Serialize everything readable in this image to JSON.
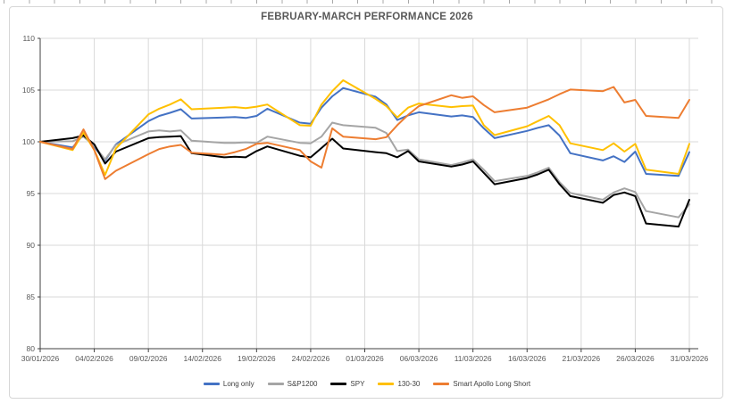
{
  "chart_data": {
    "type": "line",
    "title": "FEBRUARY-MARCH PERFORMANCE 2026",
    "xlabel": "",
    "ylabel": "",
    "ylim": [
      80,
      110
    ],
    "y_ticks": [
      80,
      85,
      90,
      95,
      100,
      105,
      110
    ],
    "grid": true,
    "legend_position": "bottom",
    "x_tick_labels": [
      "30/01/2026",
      "04/02/2026",
      "09/02/2026",
      "14/02/2026",
      "19/02/2026",
      "24/02/2026",
      "01/03/2026",
      "06/03/2026",
      "11/03/2026",
      "16/03/2026",
      "21/03/2026",
      "26/03/2026",
      "31/03/2026"
    ],
    "x": [
      "30/01/2026",
      "02/02/2026",
      "03/02/2026",
      "04/02/2026",
      "05/02/2026",
      "06/02/2026",
      "09/02/2026",
      "10/02/2026",
      "11/02/2026",
      "12/02/2026",
      "13/02/2026",
      "16/02/2026",
      "17/02/2026",
      "18/02/2026",
      "19/02/2026",
      "20/02/2026",
      "23/02/2026",
      "24/02/2026",
      "25/02/2026",
      "26/02/2026",
      "27/02/2026",
      "02/03/2026",
      "03/03/2026",
      "04/03/2026",
      "05/03/2026",
      "06/03/2026",
      "09/03/2026",
      "10/03/2026",
      "11/03/2026",
      "12/03/2026",
      "13/03/2026",
      "16/03/2026",
      "17/03/2026",
      "18/03/2026",
      "19/03/2026",
      "20/03/2026",
      "23/03/2026",
      "24/03/2026",
      "25/03/2026",
      "26/03/2026",
      "27/03/2026",
      "30/03/2026",
      "31/03/2026"
    ],
    "series": [
      {
        "name": "Long only",
        "color": "#4472C4",
        "values": [
          100,
          99.45,
          100.7,
          99.5,
          98.2,
          99.75,
          102.0,
          102.5,
          102.8,
          103.15,
          102.25,
          102.35,
          102.4,
          102.3,
          102.5,
          103.2,
          101.85,
          101.75,
          103.3,
          104.4,
          105.2,
          104.35,
          103.6,
          102.1,
          102.55,
          102.85,
          102.45,
          102.55,
          102.4,
          101.3,
          100.35,
          101.05,
          101.35,
          101.6,
          100.6,
          98.9,
          98.2,
          98.6,
          98.05,
          99.05,
          96.9,
          96.7,
          99.0
        ]
      },
      {
        "name": "S&P1200",
        "color": "#A5A5A5",
        "values": [
          100,
          100.05,
          100.5,
          99.6,
          98.3,
          99.7,
          101.0,
          101.1,
          101.0,
          101.1,
          100.1,
          99.9,
          99.9,
          99.95,
          99.9,
          100.5,
          99.9,
          99.85,
          100.5,
          101.85,
          101.6,
          101.35,
          100.85,
          99.1,
          99.25,
          98.3,
          97.75,
          98.0,
          98.3,
          97.3,
          96.2,
          96.7,
          97.05,
          97.5,
          96.1,
          95.05,
          94.4,
          95.1,
          95.5,
          95.15,
          93.3,
          92.7,
          93.95
        ]
      },
      {
        "name": "SPY",
        "color": "#000000",
        "values": [
          100,
          100.35,
          100.6,
          99.75,
          97.9,
          99.05,
          100.35,
          100.45,
          100.5,
          100.55,
          98.9,
          98.5,
          98.55,
          98.5,
          99.1,
          99.55,
          98.65,
          98.5,
          99.4,
          100.3,
          99.35,
          99.0,
          98.9,
          98.5,
          99.1,
          98.1,
          97.6,
          97.8,
          98.1,
          97.0,
          95.9,
          96.5,
          96.85,
          97.3,
          95.9,
          94.75,
          94.1,
          94.85,
          95.1,
          94.75,
          92.1,
          91.8,
          94.4
        ]
      },
      {
        "name": "130-30",
        "color": "#FFC000",
        "values": [
          100,
          99.2,
          100.9,
          99.2,
          96.8,
          99.35,
          102.65,
          103.2,
          103.6,
          104.1,
          103.15,
          103.3,
          103.35,
          103.25,
          103.4,
          103.6,
          101.6,
          101.55,
          103.6,
          104.9,
          105.95,
          104.15,
          103.45,
          102.35,
          103.3,
          103.7,
          103.35,
          103.45,
          103.5,
          101.6,
          100.65,
          101.5,
          102.0,
          102.5,
          101.6,
          99.85,
          99.2,
          99.85,
          99.05,
          99.8,
          97.3,
          96.9,
          99.8
        ]
      },
      {
        "name": "Smart Apollo Long Short",
        "color": "#ED7D31",
        "values": [
          100,
          99.3,
          101.2,
          99.2,
          96.4,
          97.2,
          98.8,
          99.3,
          99.55,
          99.7,
          98.95,
          98.75,
          99.0,
          99.3,
          99.8,
          99.9,
          99.2,
          98.1,
          97.5,
          101.3,
          100.5,
          100.25,
          100.45,
          101.6,
          102.6,
          103.45,
          104.5,
          104.25,
          104.4,
          103.55,
          102.85,
          103.3,
          103.7,
          104.1,
          104.6,
          105.05,
          104.9,
          105.3,
          103.8,
          104.05,
          102.5,
          102.3,
          104.05
        ]
      }
    ],
    "axis_color": "#404040",
    "gridline_color": "#d9d9d9",
    "tick_label_color": "#595959"
  }
}
